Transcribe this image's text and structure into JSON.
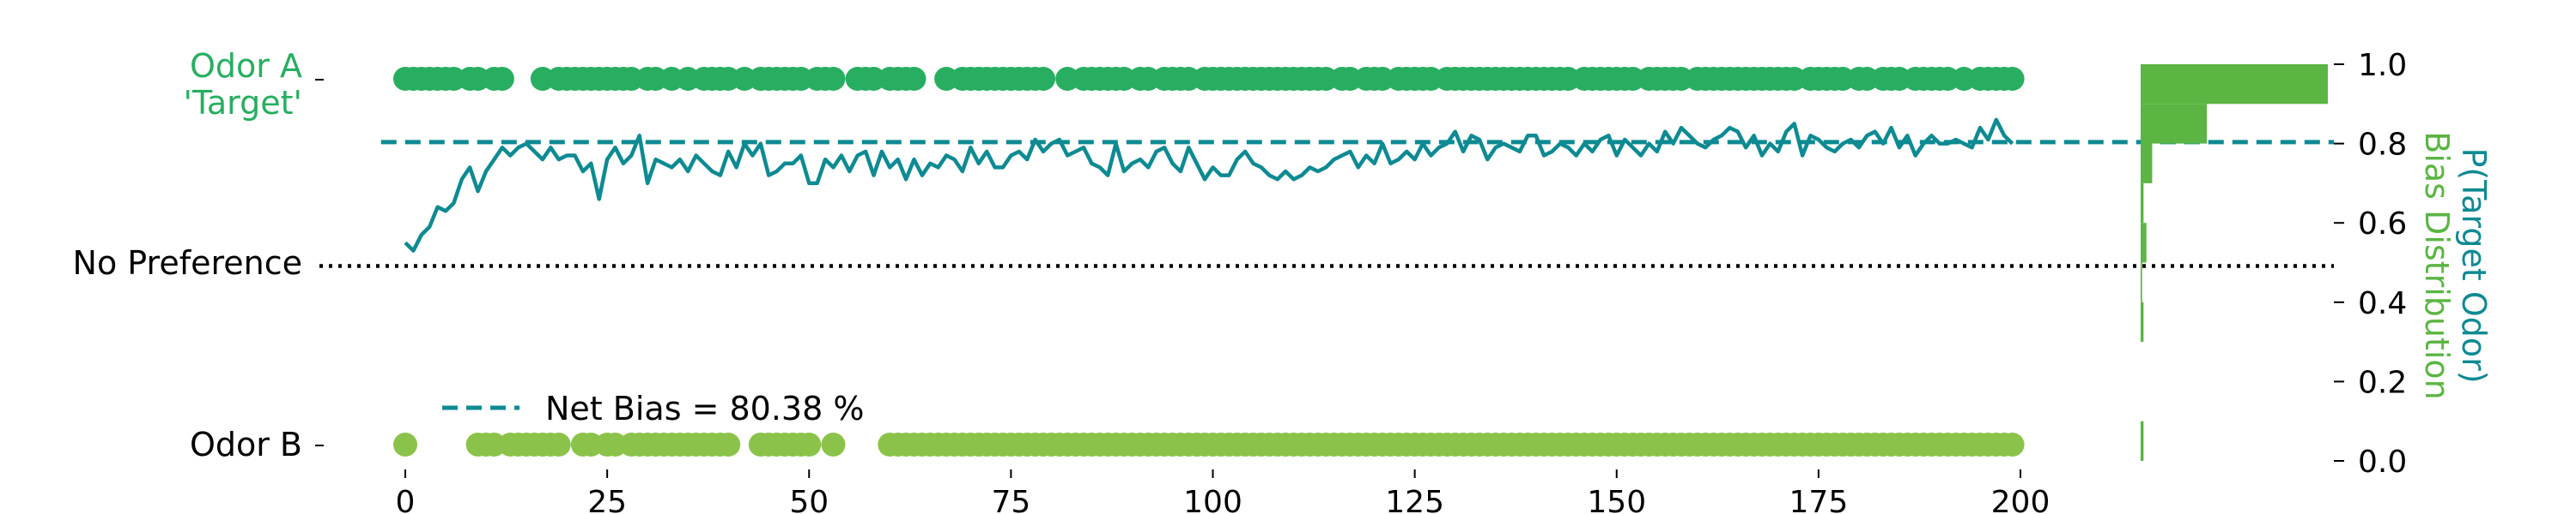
{
  "colors": {
    "odor_a": "#27ae60",
    "odor_b": "#8bc34a",
    "bias_line": "#0e8a92",
    "histogram": "#5bb543",
    "reference_line": "#000000"
  },
  "labels": {
    "odor_a_line1": "Odor A",
    "odor_a_line2": "'Target'",
    "no_preference": "No Preference",
    "odor_b": "Odor B",
    "right_axis_outer": "P(Target Odor)",
    "right_axis_inner": "Bias Distribution",
    "legend": "Net Bias = 80.38 %"
  },
  "chart_data": {
    "type": "line",
    "x_range": [
      0,
      199
    ],
    "xlim": [
      -3,
      200
    ],
    "ylim": [
      0,
      1
    ],
    "x_ticks": [
      0,
      25,
      50,
      75,
      100,
      125,
      150,
      175,
      200
    ],
    "y_ticks": [
      0.0,
      0.2,
      0.4,
      0.6,
      0.8,
      1.0
    ],
    "y_tick_labels": [
      "0.0",
      "0.2",
      "0.4",
      "0.6",
      "0.8",
      "1.0"
    ],
    "net_bias": 0.8038,
    "no_preference": 0.5,
    "odor_a_trials": [
      0,
      1,
      2,
      3,
      4,
      5,
      6,
      8,
      9,
      11,
      12,
      17,
      19,
      20,
      21,
      22,
      23,
      24,
      25,
      26,
      27,
      28,
      30,
      31,
      33,
      35,
      37,
      38,
      39,
      40,
      42,
      44,
      45,
      46,
      47,
      48,
      49,
      51,
      52,
      53,
      56,
      57,
      58,
      60,
      61,
      62,
      63,
      67,
      69,
      70,
      71,
      72,
      73,
      74,
      75,
      76,
      77,
      78,
      79,
      82,
      84,
      85,
      86,
      87,
      88,
      89,
      91,
      92,
      94,
      95,
      96,
      97,
      99,
      100,
      101,
      102,
      103,
      104,
      105,
      106,
      107,
      108,
      109,
      110,
      111,
      112,
      113,
      114,
      116,
      117,
      119,
      120,
      121,
      123,
      124,
      125,
      126,
      127,
      129,
      130,
      131,
      132,
      133,
      134,
      135,
      136,
      137,
      138,
      139,
      140,
      141,
      142,
      143,
      144,
      146,
      147,
      148,
      149,
      150,
      151,
      152,
      154,
      155,
      156,
      157,
      158,
      160,
      161,
      162,
      163,
      164,
      165,
      166,
      167,
      168,
      169,
      170,
      171,
      172,
      174,
      175,
      176,
      177,
      178,
      180,
      181,
      183,
      184,
      185,
      187,
      188,
      189,
      190,
      191,
      193,
      195,
      196,
      197,
      198,
      199
    ],
    "odor_b_trials": [
      0,
      9,
      10,
      11,
      13,
      14,
      15,
      16,
      17,
      18,
      19,
      22,
      23,
      25,
      26,
      28,
      29,
      30,
      31,
      32,
      33,
      34,
      35,
      36,
      37,
      38,
      39,
      40,
      44,
      45,
      46,
      47,
      48,
      49,
      50,
      53,
      60,
      61,
      62,
      63,
      64,
      65,
      66,
      67,
      68,
      69,
      70,
      71,
      72,
      73,
      74,
      75,
      76,
      77,
      78,
      79,
      80,
      81,
      82,
      83,
      84,
      85,
      86,
      87,
      88,
      89,
      90,
      91,
      92,
      93,
      94,
      95,
      96,
      97,
      98,
      99,
      100,
      101,
      102,
      103,
      104,
      105,
      106,
      107,
      108,
      109,
      110,
      111,
      112,
      113,
      114,
      115,
      116,
      117,
      118,
      119,
      120,
      121,
      122,
      123,
      124,
      125,
      126,
      127,
      128,
      129,
      130,
      131,
      132,
      133,
      134,
      135,
      136,
      137,
      138,
      139,
      140,
      141,
      142,
      143,
      144,
      145,
      146,
      147,
      148,
      149,
      150,
      151,
      152,
      153,
      154,
      155,
      156,
      157,
      158,
      159,
      160,
      161,
      162,
      163,
      164,
      165,
      166,
      167,
      168,
      169,
      170,
      171,
      172,
      173,
      174,
      175,
      176,
      177,
      178,
      179,
      180,
      181,
      182,
      183,
      184,
      185,
      186,
      187,
      188,
      189,
      190,
      191,
      192,
      193,
      194,
      195,
      196,
      197,
      198,
      199
    ],
    "bias_x_start": 0,
    "bias_values": [
      0.55,
      0.53,
      0.57,
      0.59,
      0.64,
      0.63,
      0.65,
      0.71,
      0.74,
      0.68,
      0.73,
      0.76,
      0.79,
      0.77,
      0.79,
      0.8,
      0.78,
      0.76,
      0.79,
      0.76,
      0.77,
      0.77,
      0.73,
      0.75,
      0.66,
      0.76,
      0.79,
      0.75,
      0.77,
      0.82,
      0.7,
      0.76,
      0.75,
      0.74,
      0.76,
      0.73,
      0.77,
      0.75,
      0.73,
      0.72,
      0.78,
      0.74,
      0.8,
      0.77,
      0.8,
      0.72,
      0.73,
      0.75,
      0.75,
      0.77,
      0.7,
      0.7,
      0.76,
      0.74,
      0.77,
      0.73,
      0.77,
      0.78,
      0.72,
      0.78,
      0.74,
      0.76,
      0.71,
      0.76,
      0.72,
      0.75,
      0.74,
      0.77,
      0.76,
      0.73,
      0.79,
      0.75,
      0.78,
      0.74,
      0.74,
      0.77,
      0.78,
      0.76,
      0.81,
      0.78,
      0.8,
      0.81,
      0.77,
      0.78,
      0.79,
      0.75,
      0.74,
      0.72,
      0.8,
      0.73,
      0.75,
      0.76,
      0.74,
      0.78,
      0.79,
      0.75,
      0.73,
      0.79,
      0.75,
      0.71,
      0.74,
      0.72,
      0.72,
      0.76,
      0.78,
      0.75,
      0.74,
      0.72,
      0.71,
      0.73,
      0.71,
      0.72,
      0.74,
      0.73,
      0.74,
      0.76,
      0.77,
      0.78,
      0.74,
      0.77,
      0.75,
      0.8,
      0.75,
      0.76,
      0.78,
      0.76,
      0.8,
      0.77,
      0.79,
      0.8,
      0.83,
      0.78,
      0.82,
      0.81,
      0.76,
      0.79,
      0.8,
      0.79,
      0.78,
      0.82,
      0.82,
      0.77,
      0.78,
      0.8,
      0.79,
      0.77,
      0.8,
      0.78,
      0.81,
      0.82,
      0.77,
      0.81,
      0.79,
      0.77,
      0.8,
      0.78,
      0.83,
      0.8,
      0.84,
      0.82,
      0.8,
      0.79,
      0.81,
      0.82,
      0.84,
      0.83,
      0.79,
      0.82,
      0.77,
      0.8,
      0.78,
      0.83,
      0.85,
      0.77,
      0.82,
      0.81,
      0.79,
      0.78,
      0.8,
      0.81,
      0.79,
      0.82,
      0.83,
      0.8,
      0.84,
      0.79,
      0.82,
      0.77,
      0.8,
      0.82,
      0.8,
      0.8,
      0.81,
      0.8,
      0.79,
      0.84,
      0.81,
      0.86,
      0.82,
      0.8
    ],
    "hist_bins": [
      {
        "y0": 0.0,
        "y1": 0.1,
        "count": 2
      },
      {
        "y0": 0.1,
        "y1": 0.2,
        "count": 0
      },
      {
        "y0": 0.2,
        "y1": 0.3,
        "count": 0
      },
      {
        "y0": 0.3,
        "y1": 0.4,
        "count": 2
      },
      {
        "y0": 0.4,
        "y1": 0.5,
        "count": 1
      },
      {
        "y0": 0.5,
        "y1": 0.6,
        "count": 4
      },
      {
        "y0": 0.6,
        "y1": 0.7,
        "count": 2
      },
      {
        "y0": 0.7,
        "y1": 0.8,
        "count": 8
      },
      {
        "y0": 0.8,
        "y1": 0.9,
        "count": 46
      },
      {
        "y0": 0.9,
        "y1": 1.0,
        "count": 130
      }
    ]
  }
}
